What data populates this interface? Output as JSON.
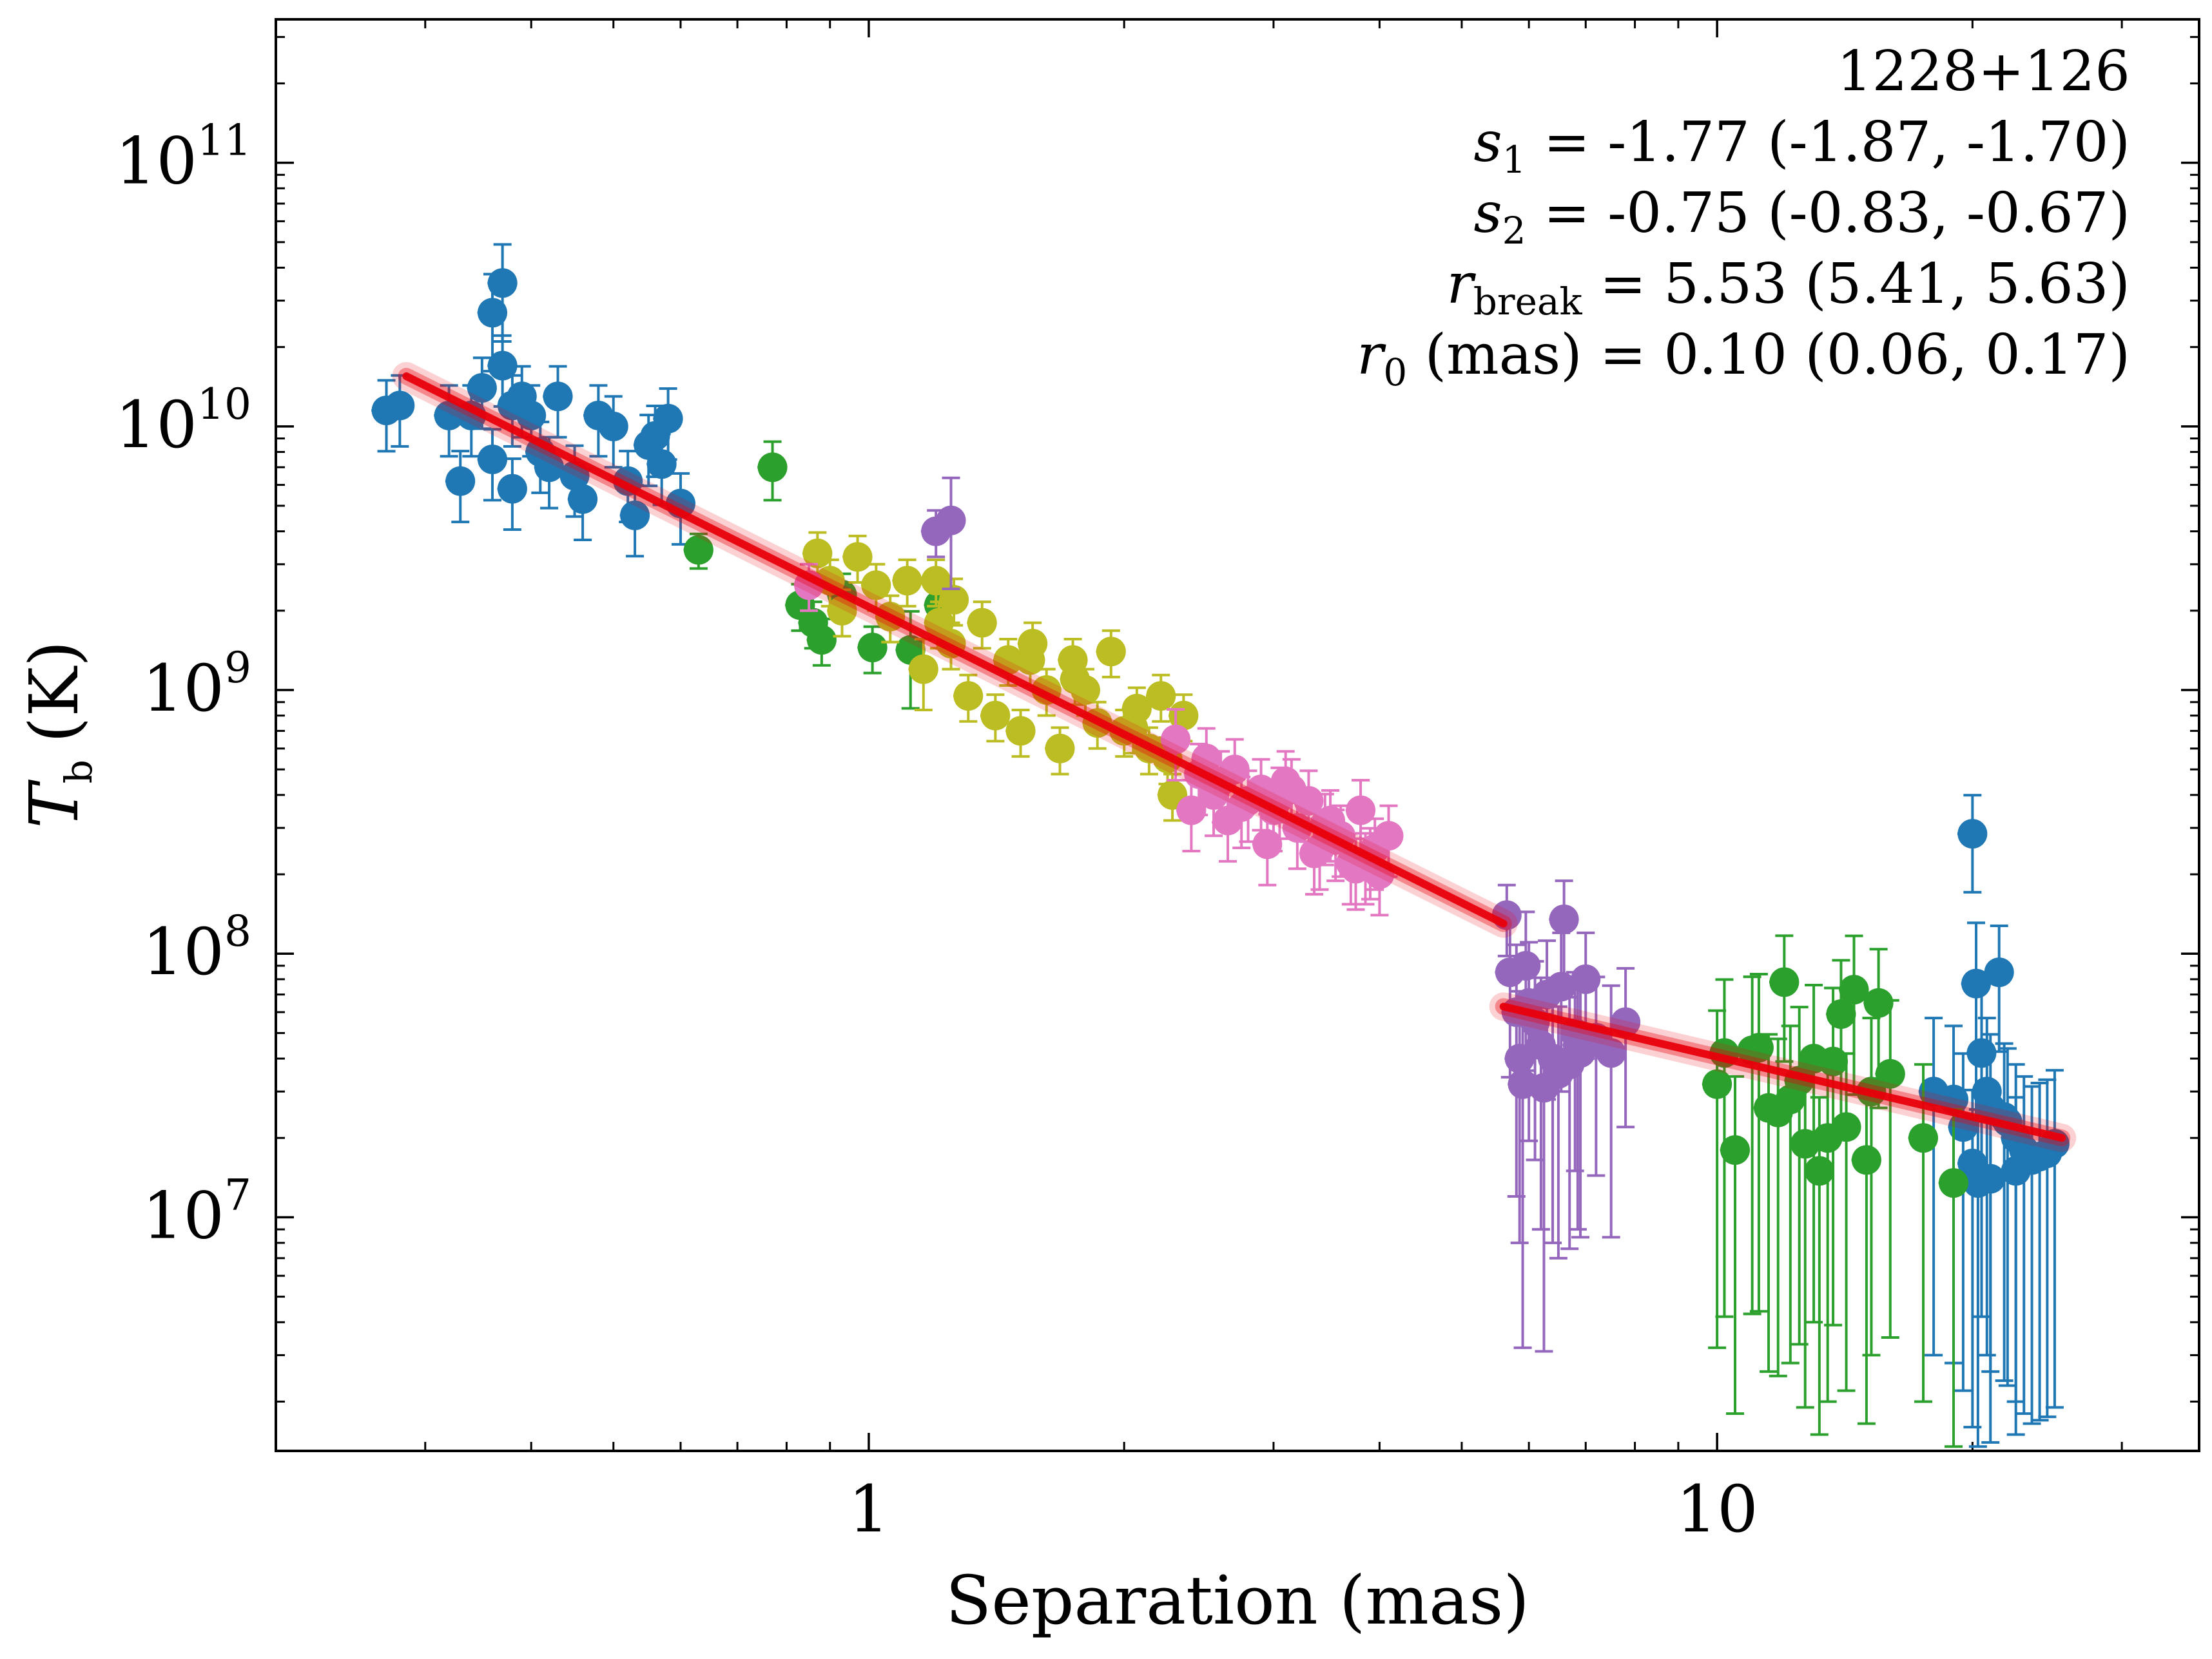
{
  "chart_data": {
    "type": "scatter",
    "title": "",
    "xlabel": "Separation (mas)",
    "ylabel": {
      "symbol": "T",
      "sub": "b",
      "unit": "(K)"
    },
    "xscale": "log",
    "yscale": "log",
    "xlim": [
      0.2,
      37
    ],
    "ylim": [
      1300000.0,
      350000000000.0
    ],
    "x_ticks": [
      {
        "value": 1,
        "label": "1"
      },
      {
        "value": 10,
        "label": "10"
      }
    ],
    "y_ticks": [
      {
        "value": 10000000.0,
        "base": "10",
        "exp": "7"
      },
      {
        "value": 100000000.0,
        "base": "10",
        "exp": "8"
      },
      {
        "value": 1000000000.0,
        "base": "10",
        "exp": "9"
      },
      {
        "value": 10000000000.0,
        "base": "10",
        "exp": "10"
      },
      {
        "value": 100000000000.0,
        "base": "10",
        "exp": "11"
      }
    ],
    "annotation": {
      "source": "1228+126",
      "lines": [
        {
          "sym": "s",
          "sub": "1",
          "text": " = -1.77 (-1.87, -1.70)"
        },
        {
          "sym": "s",
          "sub": "2",
          "text": " = -0.75 (-0.83, -0.67)"
        },
        {
          "sym": "r",
          "sub": "break",
          "text": " = 5.53 (5.41, 5.63)"
        },
        {
          "sym": "r",
          "sub": "0",
          "text": " (mas) = 0.10 (0.06, 0.17)"
        }
      ]
    },
    "fit": {
      "color": "#e8000b",
      "segments": [
        {
          "x": [
            0.285,
            5.6
          ],
          "y": [
            15500000000.0,
            130000000.0
          ]
        },
        {
          "x": [
            5.6,
            25.5
          ],
          "y": [
            63000000.0,
            20000000.0
          ]
        }
      ]
    },
    "series": [
      {
        "name": "blue",
        "color": "#1f77b4",
        "x": [
          0.28,
          0.32,
          0.33,
          0.34,
          0.35,
          0.36,
          0.37,
          0.38,
          0.38,
          0.39,
          0.4,
          0.41,
          0.42,
          0.43,
          0.45,
          0.46,
          0.48,
          0.5,
          0.52,
          0.53,
          0.55,
          0.56,
          0.57,
          0.58,
          0.6,
          0.36,
          0.37,
          0.27,
          20.0,
          20.2,
          20.5,
          20.8,
          21.0,
          21.5,
          22.0,
          22.5,
          23.0,
          24.0,
          25.0,
          18.0,
          19.0,
          20.0,
          21.0,
          22.5,
          19.5,
          23.5,
          24.5,
          20.3,
          21.8
        ],
        "y": [
          12000000000.0,
          11000000000.0,
          6200000000.0,
          11000000000.0,
          14000000000.0,
          7500000000.0,
          17000000000.0,
          5800000000.0,
          12000000000.0,
          13000000000.0,
          11000000000.0,
          8000000000.0,
          7000000000.0,
          13000000000.0,
          6500000000.0,
          5300000000.0,
          11000000000.0,
          10000000000.0,
          6200000000.0,
          4600000000.0,
          8500000000.0,
          9200000000.0,
          7200000000.0,
          10700000000.0,
          5100000000.0,
          27000000000.0,
          35000000000.0,
          11500000000.0,
          285000000.0,
          77000000.0,
          42000000.0,
          30000000.0,
          26000000.0,
          85000000.0,
          23000000.0,
          20000000.0,
          18000000.0,
          17000000.0,
          19000000.0,
          30000000.0,
          28000000.0,
          16000000.0,
          14000000.0,
          15000000.0,
          22000000.0,
          16500000.0,
          17500000.0,
          13500000.0,
          24000000.0
        ],
        "yerr_frac": [
          0.3,
          0.3,
          0.3,
          0.3,
          0.3,
          0.3,
          0.3,
          0.3,
          0.3,
          0.3,
          0.3,
          0.3,
          0.3,
          0.3,
          0.3,
          0.3,
          0.3,
          0.3,
          0.3,
          0.3,
          0.3,
          0.3,
          0.3,
          0.3,
          0.3,
          0.4,
          0.4,
          0.3,
          0.4,
          0.7,
          0.9,
          0.9,
          0.9,
          0.5,
          0.9,
          0.9,
          0.9,
          0.9,
          0.9,
          0.9,
          0.9,
          0.9,
          0.9,
          0.9,
          0.9,
          0.9,
          0.9,
          0.9,
          0.9
        ]
      },
      {
        "name": "green",
        "color": "#2ca02c",
        "x": [
          0.63,
          0.77,
          0.83,
          0.86,
          0.88,
          0.93,
          1.01,
          1.12,
          1.21,
          10.0,
          10.5,
          11.0,
          11.5,
          12.0,
          12.5,
          13.0,
          13.5,
          14.0,
          14.5,
          15.0,
          15.5,
          16.0,
          11.2,
          12.2,
          13.2,
          14.2,
          15.2,
          17.5,
          12.7,
          13.7,
          19.0,
          11.8,
          10.2
        ],
        "y": [
          3400000000.0,
          7000000000.0,
          2100000000.0,
          1800000000.0,
          1550000000.0,
          2300000000.0,
          1450000000.0,
          1420000000.0,
          2100000000.0,
          32000000.0,
          18000000.0,
          43000000.0,
          26000000.0,
          78000000.0,
          33000000.0,
          40000000.0,
          20000000.0,
          59000000.0,
          73000000.0,
          16500000.0,
          65000000.0,
          35000000.0,
          44000000.0,
          28000000.0,
          15000000.0,
          22000000.0,
          30000000.0,
          20000000.0,
          19000000.0,
          39000000.0,
          13500000.0,
          25000000.0,
          42000000.0
        ],
        "yerr_frac": [
          0.15,
          0.25,
          0.2,
          0.2,
          0.2,
          0.2,
          0.2,
          0.4,
          0.2,
          0.9,
          0.9,
          0.9,
          0.9,
          0.5,
          0.9,
          0.9,
          0.9,
          0.6,
          0.6,
          0.9,
          0.6,
          0.9,
          0.9,
          0.9,
          0.9,
          0.9,
          0.9,
          0.9,
          0.9,
          0.9,
          0.9,
          0.9,
          0.9
        ]
      },
      {
        "name": "olive",
        "color": "#bcbd22",
        "x": [
          0.87,
          0.9,
          0.93,
          0.97,
          1.02,
          1.06,
          1.11,
          1.16,
          1.21,
          1.26,
          1.31,
          1.36,
          1.41,
          1.46,
          1.51,
          1.56,
          1.62,
          1.68,
          1.74,
          1.8,
          1.86,
          1.93,
          2.0,
          2.07,
          2.14,
          2.21,
          2.28,
          2.35,
          1.2,
          1.25,
          1.55,
          1.75,
          2.05,
          2.25
        ],
        "y": [
          3300000000.0,
          2600000000.0,
          2000000000.0,
          3200000000.0,
          2500000000.0,
          1900000000.0,
          2600000000.0,
          1200000000.0,
          1800000000.0,
          2200000000.0,
          950000000.0,
          1800000000.0,
          800000000.0,
          1300000000.0,
          700000000.0,
          1500000000.0,
          1000000000.0,
          600000000.0,
          1300000000.0,
          1000000000.0,
          750000000.0,
          1400000000.0,
          700000000.0,
          850000000.0,
          600000000.0,
          950000000.0,
          400000000.0,
          800000000.0,
          2600000000.0,
          1500000000.0,
          1300000000.0,
          1100000000.0,
          720000000.0,
          550000000.0
        ],
        "yerr_frac": [
          0.2,
          0.2,
          0.2,
          0.2,
          0.2,
          0.2,
          0.2,
          0.3,
          0.2,
          0.2,
          0.2,
          0.2,
          0.2,
          0.2,
          0.2,
          0.2,
          0.2,
          0.2,
          0.2,
          0.2,
          0.2,
          0.2,
          0.2,
          0.2,
          0.2,
          0.2,
          0.2,
          0.2,
          0.2,
          0.2,
          0.2,
          0.2,
          0.2,
          0.2
        ]
      },
      {
        "name": "pink",
        "color": "#e377c2",
        "x": [
          0.85,
          2.3,
          2.4,
          2.5,
          2.6,
          2.7,
          2.8,
          2.9,
          3.0,
          3.1,
          3.2,
          3.3,
          3.4,
          3.5,
          3.6,
          3.7,
          3.8,
          3.9,
          4.0,
          4.1,
          2.55,
          2.75,
          2.95,
          3.15,
          3.35,
          3.55,
          3.75,
          3.95,
          2.45,
          2.65,
          3.05,
          3.45,
          3.85
        ],
        "y": [
          2500000000.0,
          650000000.0,
          350000000.0,
          550000000.0,
          450000000.0,
          500000000.0,
          380000000.0,
          420000000.0,
          350000000.0,
          450000000.0,
          300000000.0,
          380000000.0,
          250000000.0,
          320000000.0,
          280000000.0,
          220000000.0,
          350000000.0,
          230000000.0,
          200000000.0,
          280000000.0,
          400000000.0,
          360000000.0,
          260000000.0,
          420000000.0,
          240000000.0,
          270000000.0,
          210000000.0,
          250000000.0,
          480000000.0,
          320000000.0,
          390000000.0,
          310000000.0,
          220000000.0
        ],
        "yerr_frac": [
          0.2,
          0.3,
          0.3,
          0.3,
          0.3,
          0.3,
          0.3,
          0.3,
          0.3,
          0.3,
          0.3,
          0.3,
          0.3,
          0.3,
          0.3,
          0.3,
          0.3,
          0.3,
          0.3,
          0.3,
          0.3,
          0.3,
          0.3,
          0.3,
          0.3,
          0.3,
          0.3,
          0.3,
          0.3,
          0.3,
          0.3,
          0.3,
          0.3
        ]
      },
      {
        "name": "purple",
        "color": "#9467bd",
        "x": [
          1.2,
          1.25,
          5.65,
          5.7,
          5.8,
          5.85,
          5.9,
          6.0,
          6.1,
          6.2,
          6.3,
          6.4,
          6.5,
          6.6,
          6.7,
          6.8,
          6.9,
          7.0,
          7.2,
          7.5,
          7.8,
          5.95,
          6.25,
          6.55,
          6.85
        ],
        "y": [
          4000000000.0,
          4400000000.0,
          140000000.0,
          85000000.0,
          60000000.0,
          40000000.0,
          32000000.0,
          65000000.0,
          55000000.0,
          45000000.0,
          70000000.0,
          40000000.0,
          35000000.0,
          135000000.0,
          38000000.0,
          50000000.0,
          42000000.0,
          80000000.0,
          48000000.0,
          42000000.0,
          55000000.0,
          90000000.0,
          31000000.0,
          75000000.0,
          45000000.0
        ],
        "yerr_frac": [
          0.2,
          0.45,
          0.3,
          0.6,
          0.8,
          0.8,
          0.9,
          0.7,
          0.7,
          0.8,
          0.6,
          0.8,
          0.8,
          0.4,
          0.8,
          0.7,
          0.8,
          0.5,
          0.7,
          0.8,
          0.6,
          0.6,
          0.9,
          0.6,
          0.8
        ]
      }
    ]
  }
}
